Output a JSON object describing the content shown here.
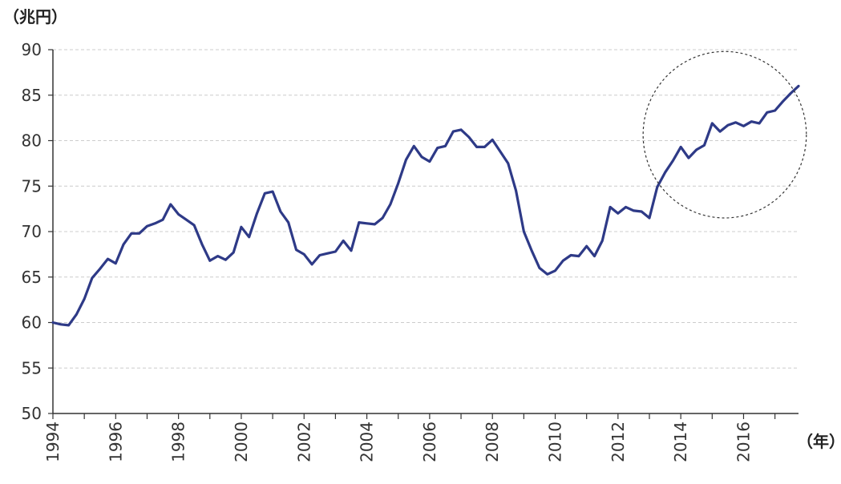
{
  "chart_data": {
    "type": "line",
    "ylabel": "（兆円）",
    "xlabel": "（年）",
    "ylim": [
      50,
      90
    ],
    "xlim": [
      1994,
      2017.75
    ],
    "yticks": [
      50,
      55,
      60,
      65,
      70,
      75,
      80,
      85,
      90
    ],
    "xticks": [
      1994,
      1996,
      1998,
      2000,
      2002,
      2004,
      2006,
      2008,
      2010,
      2012,
      2014,
      2016
    ],
    "grid": "horizontal-dashed",
    "line_color": "#2e3a87",
    "highlight": {
      "shape": "dashed-ellipse",
      "x_range": [
        2012.8,
        2018.0
      ],
      "y_range": [
        71.5,
        89.8
      ]
    },
    "series": [
      {
        "x": [
          1994.0,
          1994.25,
          1994.5,
          1994.75,
          1995.0,
          1995.25,
          1995.5,
          1995.75,
          1996.0,
          1996.25,
          1996.5,
          1996.75,
          1997.0,
          1997.25,
          1997.5,
          1997.75,
          1998.0,
          1998.25,
          1998.5,
          1998.75,
          1999.0,
          1999.25,
          1999.5,
          1999.75,
          2000.0,
          2000.25,
          2000.5,
          2000.75,
          2001.0,
          2001.25,
          2001.5,
          2001.75,
          2002.0,
          2002.25,
          2002.5,
          2002.75,
          2003.0,
          2003.25,
          2003.5,
          2003.75,
          2004.0,
          2004.25,
          2004.5,
          2004.75,
          2005.0,
          2005.25,
          2005.5,
          2005.75,
          2006.0,
          2006.25,
          2006.5,
          2006.75,
          2007.0,
          2007.25,
          2007.5,
          2007.75,
          2008.0,
          2008.25,
          2008.5,
          2008.75,
          2009.0,
          2009.25,
          2009.5,
          2009.75,
          2010.0,
          2010.25,
          2010.5,
          2010.75,
          2011.0,
          2011.25,
          2011.5,
          2011.75,
          2012.0,
          2012.25,
          2012.5,
          2012.75,
          2013.0,
          2013.25,
          2013.5,
          2013.75,
          2014.0,
          2014.25,
          2014.5,
          2014.75,
          2015.0,
          2015.25,
          2015.5,
          2015.75,
          2016.0,
          2016.25,
          2016.5,
          2016.75,
          2017.0,
          2017.25,
          2017.5,
          2017.75
        ],
        "values": [
          60.0,
          59.8,
          59.7,
          60.9,
          62.6,
          64.9,
          65.9,
          67.0,
          66.5,
          68.6,
          69.8,
          69.8,
          70.6,
          70.9,
          71.3,
          73.0,
          71.9,
          71.3,
          70.7,
          68.6,
          66.8,
          67.3,
          66.9,
          67.7,
          70.5,
          69.4,
          72.0,
          74.2,
          74.4,
          72.2,
          71.0,
          68.0,
          67.5,
          66.4,
          67.4,
          67.6,
          67.8,
          69.0,
          67.9,
          71.0,
          70.9,
          70.8,
          71.5,
          73.0,
          75.3,
          77.9,
          79.4,
          78.2,
          77.7,
          79.2,
          79.4,
          81.0,
          81.2,
          80.4,
          79.3,
          79.3,
          80.1,
          78.8,
          77.5,
          74.5,
          70.0,
          67.9,
          66.0,
          65.3,
          65.7,
          66.8,
          67.4,
          67.3,
          68.4,
          67.3,
          69.0,
          72.7,
          72.0,
          72.7,
          72.3,
          72.2,
          71.5,
          74.9,
          76.5,
          77.8,
          79.3,
          78.1,
          79.0,
          79.5,
          81.9,
          81.0,
          81.7,
          82.0,
          81.6,
          82.1,
          81.9,
          83.1,
          83.3,
          84.3,
          85.2,
          86.0
        ]
      }
    ]
  }
}
